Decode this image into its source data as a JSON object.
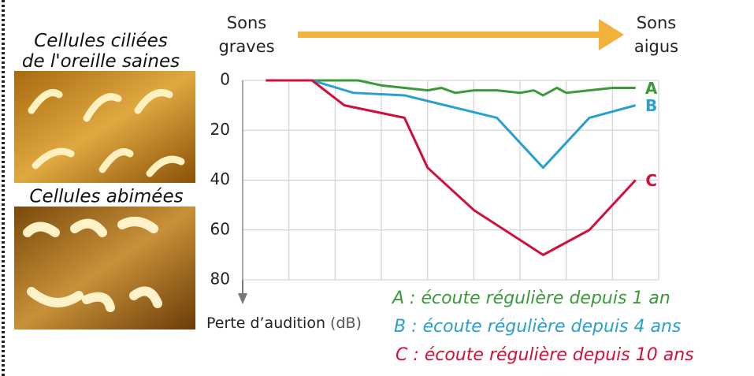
{
  "chart_data": {
    "type": "line",
    "x_label_left": "Sons graves",
    "x_label_right": "Sons aigus",
    "y_label": "Perte d’audition",
    "y_unit": "(dB)",
    "ylim": [
      0,
      80
    ],
    "yticks": [
      0,
      20,
      40,
      60,
      80
    ],
    "y_inverted": true,
    "xlim": [
      0,
      9
    ],
    "xticks": [
      0,
      1,
      2,
      3,
      4,
      5,
      6,
      7,
      8,
      9
    ],
    "grid": true,
    "series": [
      {
        "name": "A",
        "legend_label": "A : écoute régulière depuis 1 an",
        "color": "#3a9a3a",
        "x": [
          1.5,
          2.5,
          3.0,
          3.5,
          4.0,
          4.3,
          4.6,
          5.0,
          5.5,
          6.0,
          6.3,
          6.5,
          6.8,
          7.0,
          7.5,
          8.0,
          8.5
        ],
        "values": [
          0,
          0,
          2,
          3,
          4,
          3,
          5,
          4,
          4,
          5,
          4,
          6,
          3,
          5,
          4,
          3,
          3
        ]
      },
      {
        "name": "B",
        "legend_label": "B : écoute régulière depuis 4 ans",
        "color": "#2a9fd0",
        "x": [
          1.5,
          2.4,
          3.5,
          5.5,
          6.5,
          7.5,
          8.5
        ],
        "values": [
          0,
          5,
          6,
          15,
          35,
          15,
          10
        ]
      },
      {
        "name": "C",
        "legend_label": "C : écoute régulière depuis 10 ans",
        "color": "#d0103a",
        "x": [
          0.5,
          1.5,
          2.2,
          3.5,
          4.0,
          5.0,
          6.5,
          7.5,
          8.5
        ],
        "values": [
          0,
          0,
          10,
          15,
          35,
          52,
          70,
          60,
          40
        ]
      }
    ]
  },
  "images": {
    "top_caption": "Cellules ciliées de l'oreille saines",
    "bottom_caption": "Cellules abimées"
  }
}
